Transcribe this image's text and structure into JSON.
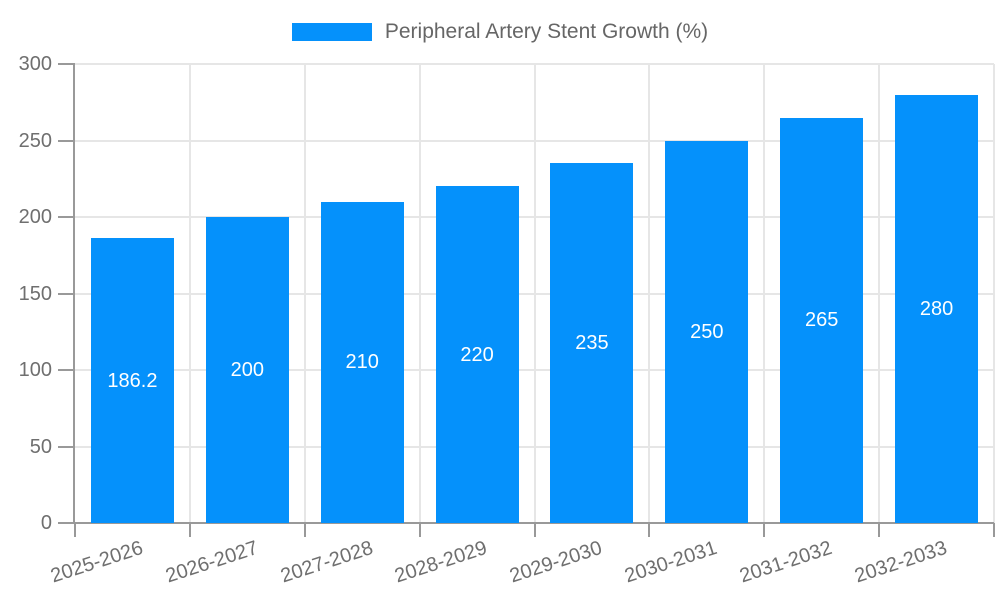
{
  "chart_data": {
    "type": "bar",
    "title": "Peripheral Artery Stent Growth (%)",
    "series_name": "Peripheral Artery Stent Growth (%)",
    "categories": [
      "2025-2026",
      "2026-2027",
      "2027-2028",
      "2028-2029",
      "2029-2030",
      "2030-2031",
      "2031-2032",
      "2032-2033"
    ],
    "values": [
      186.2,
      200,
      210,
      220,
      235,
      250,
      265,
      280
    ],
    "value_labels": [
      "186.2",
      "200",
      "210",
      "220",
      "235",
      "250",
      "265",
      "280"
    ],
    "xlabel": "",
    "ylabel": "",
    "ylim": [
      0,
      300
    ],
    "yticks": [
      0,
      50,
      100,
      150,
      200,
      250,
      300
    ],
    "ytick_labels": [
      "0",
      "50",
      "100",
      "150",
      "200",
      "250",
      "300"
    ],
    "legend_position": "top-center",
    "grid": "on",
    "colors": {
      "bar": "#0591fb",
      "grid_line": "#e6e6e6",
      "axis_line": "#999999",
      "tick_text": "#6f6f6f",
      "legend_text": "#666666",
      "value_label_text": "#ffffff",
      "background": "#ffffff"
    }
  }
}
